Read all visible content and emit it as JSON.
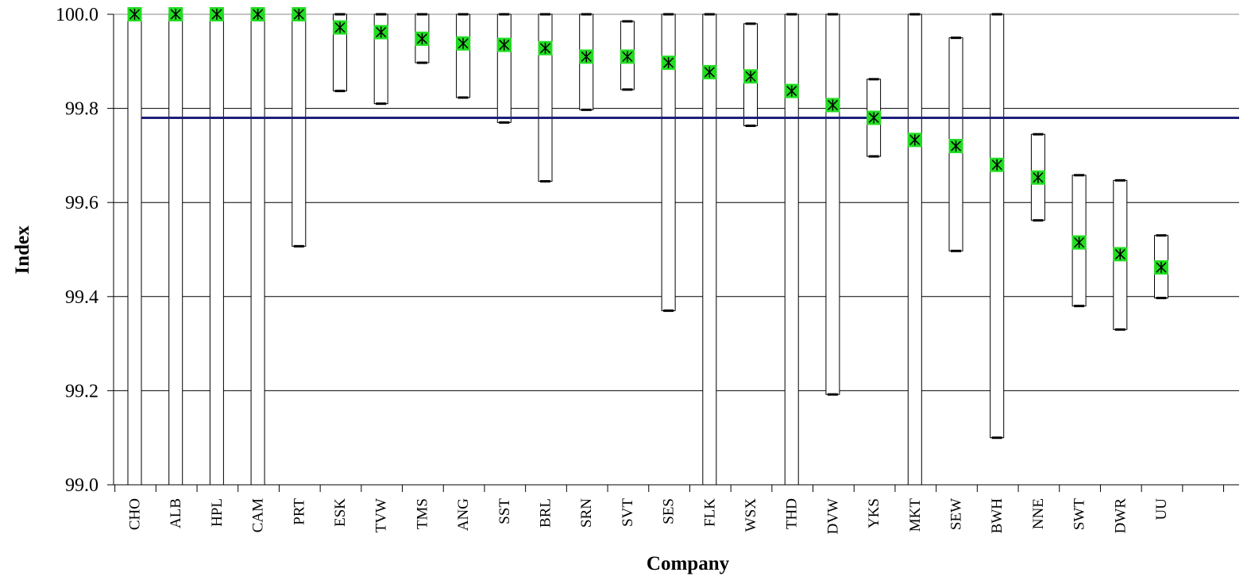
{
  "chart_data": {
    "type": "range-bar-with-markers",
    "xlabel": "Company",
    "ylabel": "Index",
    "ylim": [
      99.0,
      100.0
    ],
    "yticks": [
      "99.0",
      "99.2",
      "99.4",
      "99.6",
      "99.8",
      "100.0"
    ],
    "grid": true,
    "reference_line": {
      "value": 99.78,
      "color": "#1b1f7a"
    },
    "marker_color": "#22dd22",
    "categories": [
      "CHO",
      "ALB",
      "HPL",
      "CAM",
      "PRT",
      "ESK",
      "TVW",
      "TMS",
      "ANG",
      "SST",
      "BRL",
      "SRN",
      "SVT",
      "SES",
      "FLK",
      "WSX",
      "THD",
      "DVW",
      "YKS",
      "MKT",
      "SEW",
      "BWH",
      "NNE",
      "SWT",
      "DWR",
      "UU"
    ],
    "values": [
      100.0,
      100.0,
      100.0,
      100.0,
      100.0,
      99.972,
      99.962,
      99.948,
      99.938,
      99.935,
      99.928,
      99.91,
      99.91,
      99.897,
      99.877,
      99.868,
      99.837,
      99.807,
      99.78,
      99.733,
      99.72,
      99.68,
      99.653,
      99.515,
      99.49,
      99.462
    ],
    "lower": [
      99.0,
      99.0,
      99.0,
      99.0,
      99.507,
      99.837,
      99.81,
      99.897,
      99.823,
      99.77,
      99.645,
      99.797,
      99.84,
      99.37,
      99.0,
      99.763,
      99.0,
      99.192,
      99.698,
      99.0,
      99.497,
      99.1,
      99.562,
      99.38,
      99.33,
      99.397
    ],
    "upper": [
      100.0,
      100.0,
      100.0,
      100.0,
      100.0,
      100.0,
      100.0,
      100.0,
      100.0,
      100.0,
      100.0,
      100.0,
      99.985,
      100.0,
      100.0,
      99.98,
      100.0,
      100.0,
      99.862,
      100.0,
      99.95,
      100.0,
      99.745,
      99.658,
      99.647,
      99.53
    ]
  }
}
